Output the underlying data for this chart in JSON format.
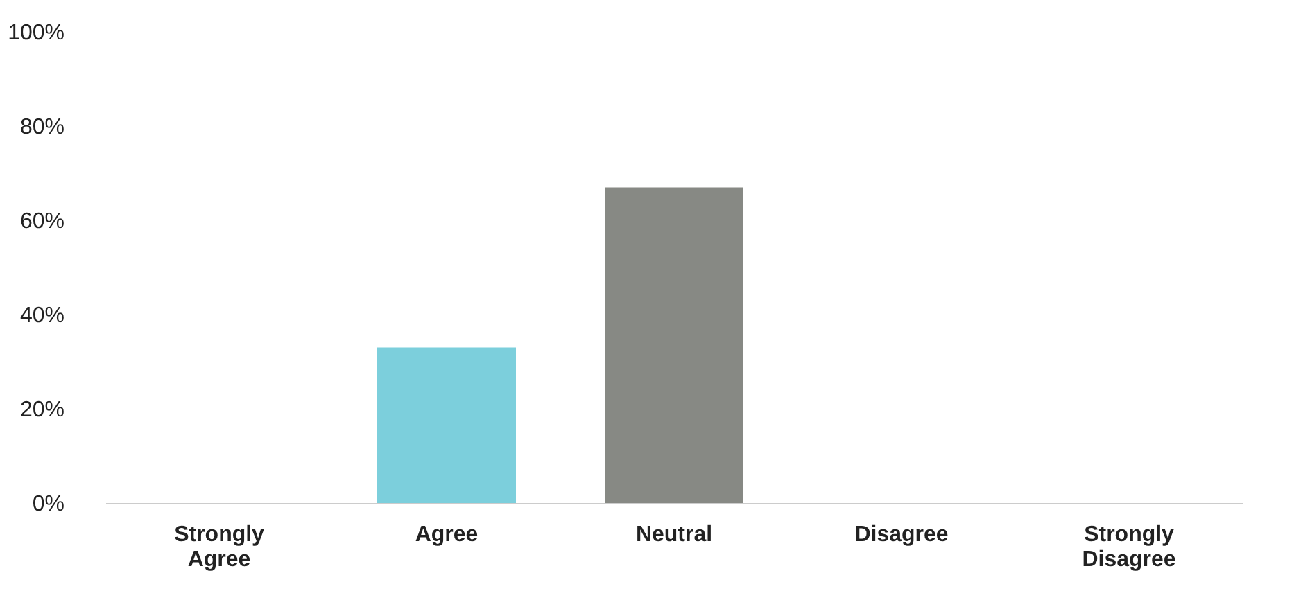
{
  "chart_data": {
    "type": "bar",
    "categories": [
      "Strongly Agree",
      "Agree",
      "Neutral",
      "Disagree",
      "Strongly Disagree"
    ],
    "values": [
      0,
      33,
      67,
      0,
      0
    ],
    "colors": [
      "#7ccfdc",
      "#7ccfdc",
      "#878984",
      "#878984",
      "#878984"
    ],
    "ylim": [
      0,
      100
    ],
    "yticks": [
      {
        "value": 0,
        "label": "0%"
      },
      {
        "value": 20,
        "label": "20%"
      },
      {
        "value": 40,
        "label": "40%"
      },
      {
        "value": 60,
        "label": "60%"
      },
      {
        "value": 80,
        "label": "80%"
      },
      {
        "value": 100,
        "label": "100%"
      }
    ],
    "grid": false
  }
}
